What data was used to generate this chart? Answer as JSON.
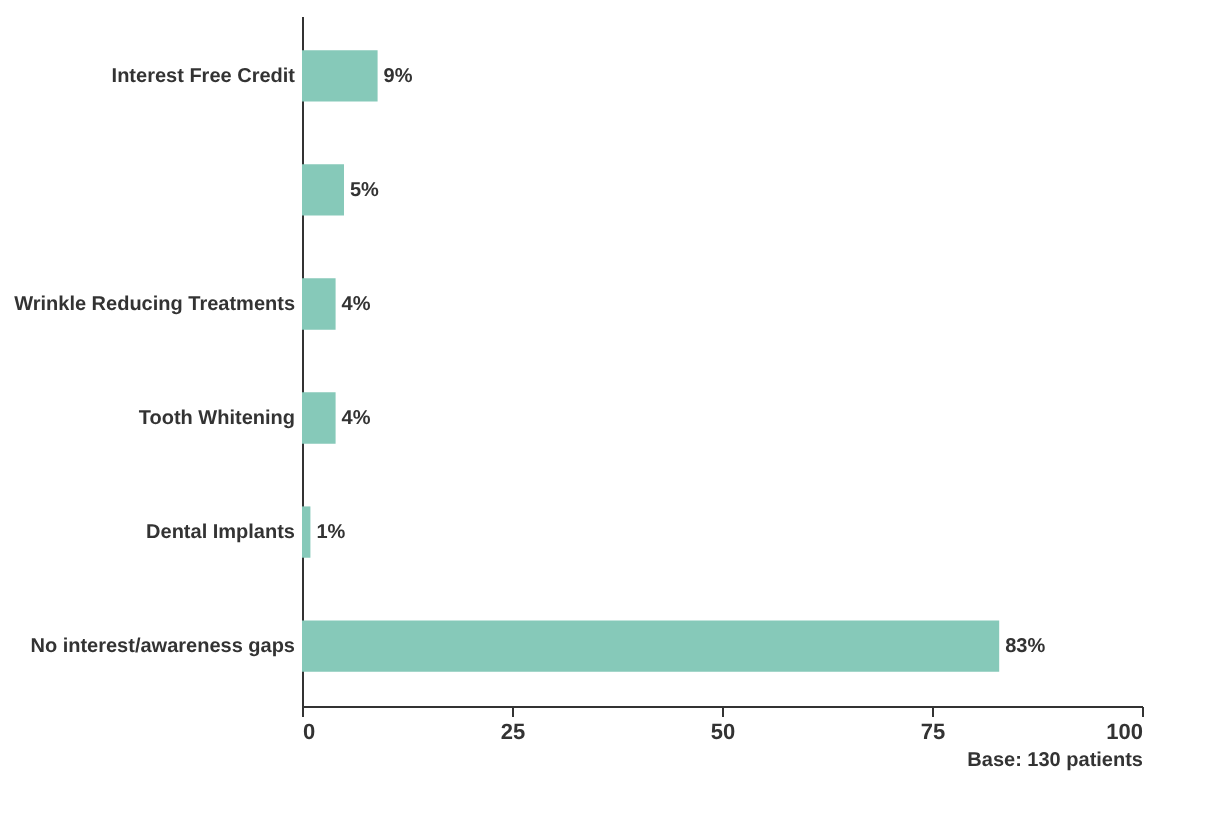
{
  "chart_data": {
    "type": "bar",
    "orientation": "horizontal",
    "categories": [
      "Interest Free Credit",
      null,
      "Wrinkle Reducing Treatments",
      "Tooth Whitening",
      "Dental Implants",
      "No interest/awareness gaps"
    ],
    "values": [
      9,
      5,
      4,
      4,
      1,
      83
    ],
    "value_labels": [
      "9%",
      "5%",
      "4%",
      "4%",
      "1%",
      "83%"
    ],
    "color": "#86c9b9",
    "xlim": [
      0,
      100
    ],
    "xticks": [
      0,
      25,
      50,
      75,
      100
    ],
    "grid": false,
    "annotations": [
      "Base: 130 patients"
    ]
  }
}
